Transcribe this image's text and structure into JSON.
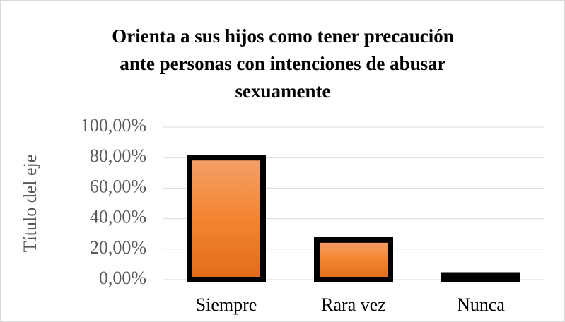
{
  "chart_data": {
    "type": "bar",
    "title": [
      "Orienta a sus hijos como tener precaución",
      "ante personas con intenciones de abusar",
      "sexuamente"
    ],
    "y_label": "Título del eje",
    "categories": [
      "Siempre",
      "Rara vez",
      "Nunca"
    ],
    "values": [
      80,
      26,
      3
    ],
    "color": "#ed7d31",
    "ylim": [
      0,
      100
    ],
    "yticks": [
      {
        "value": 0,
        "label": "0,00%"
      },
      {
        "value": 20,
        "label": "20,00%"
      },
      {
        "value": 40,
        "label": "40,00%"
      },
      {
        "value": 60,
        "label": "60,00%"
      },
      {
        "value": 80,
        "label": "80,00%"
      },
      {
        "value": 100,
        "label": "100,00%"
      }
    ],
    "grid": true
  }
}
